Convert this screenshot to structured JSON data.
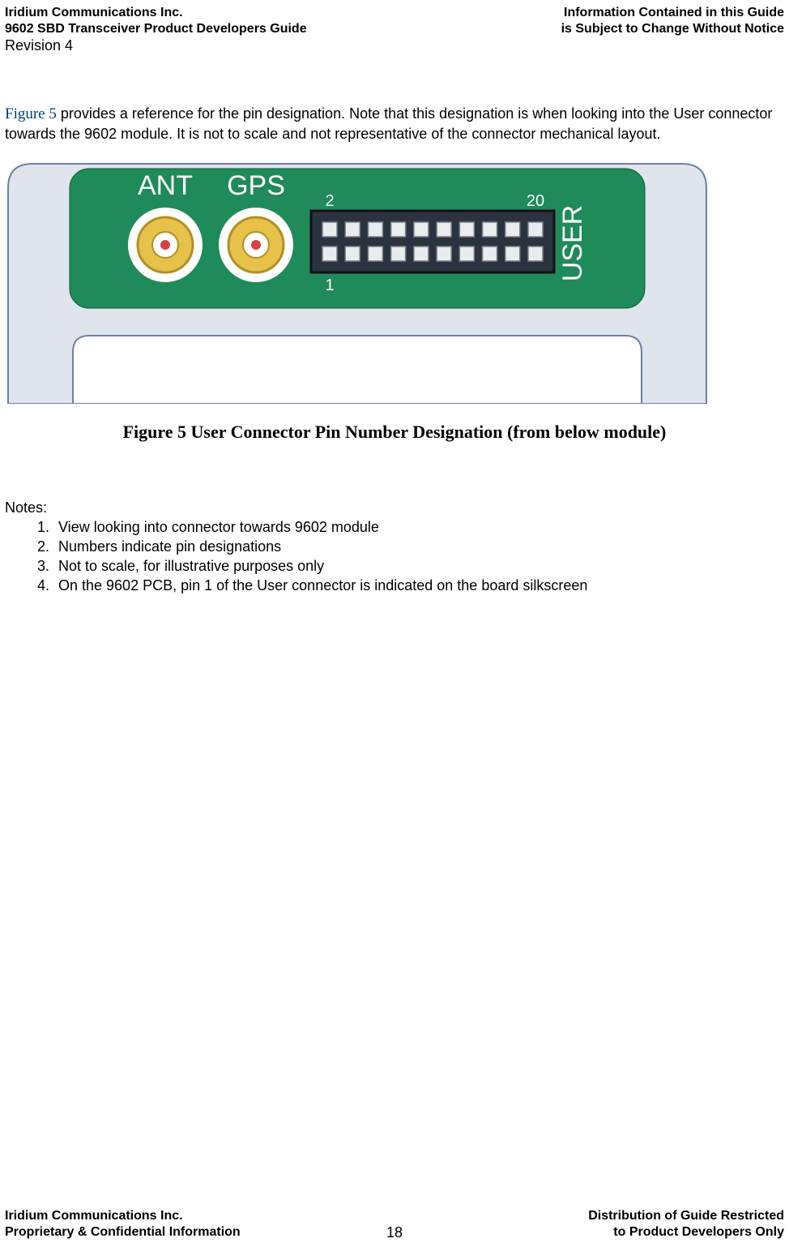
{
  "header": {
    "left1": "Iridium Communications Inc.",
    "left2": "9602 SBD Transceiver Product Developers Guide",
    "left3": "Revision 4",
    "right1": "Information Contained in this Guide",
    "right2": "is Subject to Change Without Notice"
  },
  "intro": {
    "figref": "Figure 5",
    "rest": " provides a reference for the pin designation. Note that this designation is when looking into the User connector towards the 9602 module. It is not to scale and not representative of the connector mechanical layout."
  },
  "figure": {
    "label_ant": "ANT",
    "label_gps": "GPS",
    "label_user": "USER",
    "pin_top_left": "2",
    "pin_top_right": "20",
    "pin_bottom_left": "1",
    "colors": {
      "housing_fill": "#e0e4ec",
      "housing_stroke": "#6e7ea8",
      "pcb": "#1f8a5a",
      "silk": "#ffffff",
      "smacx_outer": "#e6c24a",
      "smacx_stroke": "#b38f22",
      "smacx_pin": "#d94141",
      "conn_body": "#2b3340",
      "conn_stroke": "#0d1016",
      "pin_fill": "#e8ecef",
      "pin_stroke": "#7a7f85"
    }
  },
  "caption": "Figure 5 User Connector Pin Number Designation (from below module)",
  "notes": {
    "heading": "Notes:",
    "items": [
      "View looking into connector towards 9602 module",
      "Numbers indicate pin designations",
      "Not to scale, for illustrative purposes only",
      "On the 9602 PCB, pin 1 of the User connector is indicated on the board silkscreen"
    ]
  },
  "footer": {
    "left1": "Iridium Communications Inc.",
    "left2": "Proprietary & Confidential Information",
    "right1": "Distribution of Guide Restricted",
    "right2": "to Product Developers Only",
    "page": "18"
  }
}
